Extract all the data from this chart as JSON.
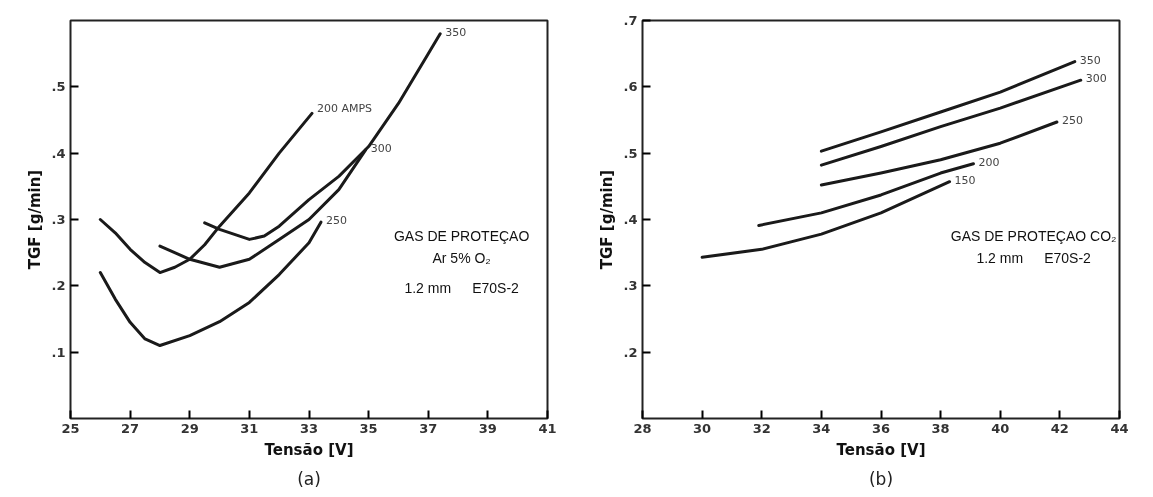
{
  "chart_data": [
    {
      "type": "line",
      "title": "(a)",
      "xlabel": "Tensão [V]",
      "ylabel": "TGF [g/min]",
      "xlim": [
        25,
        41
      ],
      "ylim": [
        0,
        0.6
      ],
      "xticks": [
        25,
        27,
        29,
        31,
        33,
        35,
        37,
        39,
        41
      ],
      "yticks": [
        {
          "value": 0.1,
          "label": ".1"
        },
        {
          "value": 0.2,
          "label": ".2"
        },
        {
          "value": 0.3,
          "label": ".3"
        },
        {
          "value": 0.4,
          "label": ".4"
        },
        {
          "value": 0.5,
          "label": ".5"
        }
      ],
      "grid": false,
      "legend": false,
      "marker": "none",
      "line_style": "solid",
      "annotations": [
        "GAS DE PROTEÇAO",
        "Ar 5% O₂",
        "1.2 mm",
        "E70S-2"
      ],
      "series": [
        {
          "name": "200 AMPS",
          "color": "#1a1a1a",
          "x": [
            26,
            26.5,
            27,
            27.5,
            28,
            28.5,
            29,
            29.5,
            30,
            31,
            32,
            33.1
          ],
          "values": [
            0.3,
            0.28,
            0.255,
            0.235,
            0.22,
            0.228,
            0.24,
            0.262,
            0.29,
            0.34,
            0.4,
            0.46
          ]
        },
        {
          "name": "250",
          "color": "#1a1a1a",
          "x": [
            26,
            26.5,
            27,
            27.5,
            28,
            29,
            30,
            31,
            32,
            33,
            33.4
          ],
          "values": [
            0.22,
            0.18,
            0.145,
            0.12,
            0.11,
            0.125,
            0.146,
            0.175,
            0.217,
            0.265,
            0.296
          ]
        },
        {
          "name": "300",
          "color": "#1a1a1a",
          "x": [
            28,
            29,
            30,
            31,
            32,
            33,
            34,
            34.9
          ],
          "values": [
            0.26,
            0.24,
            0.228,
            0.24,
            0.27,
            0.3,
            0.345,
            0.405
          ]
        },
        {
          "name": "350",
          "color": "#1a1a1a",
          "x": [
            29.5,
            30,
            31,
            31.5,
            32,
            33,
            34,
            35,
            36,
            37,
            37.4
          ],
          "values": [
            0.295,
            0.285,
            0.27,
            0.275,
            0.29,
            0.33,
            0.365,
            0.41,
            0.475,
            0.55,
            0.58
          ]
        }
      ]
    },
    {
      "type": "line",
      "title": "(b)",
      "xlabel": "Tensão [V]",
      "ylabel": "TGF [g/min]",
      "xlim": [
        28,
        44
      ],
      "ylim": [
        0.1,
        0.7
      ],
      "xticks": [
        28,
        30,
        32,
        34,
        36,
        38,
        40,
        42,
        44
      ],
      "yticks": [
        {
          "value": 0.2,
          "label": ".2"
        },
        {
          "value": 0.3,
          "label": ".3"
        },
        {
          "value": 0.4,
          "label": ".4"
        },
        {
          "value": 0.5,
          "label": ".5"
        },
        {
          "value": 0.6,
          "label": ".6"
        },
        {
          "value": 0.7,
          "label": ".7"
        }
      ],
      "grid": false,
      "legend": false,
      "marker": "none",
      "line_style": "solid",
      "annotations": [
        "GAS DE PROTEÇAO CO₂",
        "1.2 mm",
        "E70S-2"
      ],
      "series": [
        {
          "name": "350",
          "color": "#1a1a1a",
          "x": [
            34,
            36,
            38,
            40,
            42.5
          ],
          "values": [
            0.503,
            0.532,
            0.562,
            0.592,
            0.638
          ]
        },
        {
          "name": "300",
          "color": "#1a1a1a",
          "x": [
            34,
            36,
            38,
            40,
            42.7
          ],
          "values": [
            0.482,
            0.51,
            0.54,
            0.568,
            0.61
          ]
        },
        {
          "name": "250",
          "color": "#1a1a1a",
          "x": [
            34,
            36,
            38,
            40,
            41.9
          ],
          "values": [
            0.452,
            0.47,
            0.49,
            0.515,
            0.547
          ]
        },
        {
          "name": "200",
          "color": "#1a1a1a",
          "x": [
            31.9,
            34,
            36,
            38,
            39.1
          ],
          "values": [
            0.391,
            0.41,
            0.437,
            0.47,
            0.484
          ]
        },
        {
          "name": "150",
          "color": "#1a1a1a",
          "x": [
            30,
            32,
            34,
            36,
            38.3
          ],
          "values": [
            0.343,
            0.355,
            0.378,
            0.41,
            0.457
          ]
        }
      ]
    }
  ]
}
